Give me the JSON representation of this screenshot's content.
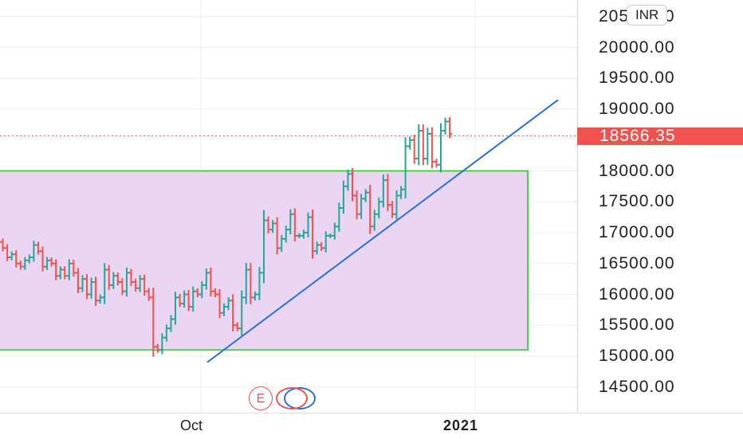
{
  "chart_data": {
    "type": "ohlc",
    "currency": "INR",
    "last_price_label": "18566.35",
    "last_price": 18566.35,
    "y_axis": {
      "ticks": [
        "20500.00",
        "20000.00",
        "19500.00",
        "19000.00",
        "18000.00",
        "17500.00",
        "17000.00",
        "16500.00",
        "16000.00",
        "15500.00",
        "15000.00",
        "14500.00"
      ],
      "tick_values": [
        20500,
        20000,
        19500,
        19000,
        18000,
        17500,
        17000,
        16500,
        16000,
        15500,
        15000,
        14500
      ],
      "range": [
        14100,
        21000
      ]
    },
    "x_axis": {
      "labels": [
        {
          "text": "Oct",
          "bold": false
        },
        {
          "text": "2021",
          "bold": true
        }
      ]
    },
    "grid": true,
    "bars_close": [
      16850,
      16750,
      16600,
      16650,
      16500,
      16450,
      16550,
      16600,
      16800,
      16700,
      16450,
      16550,
      16500,
      16300,
      16400,
      16300,
      16500,
      16350,
      16100,
      16250,
      16000,
      16200,
      15900,
      15950,
      16400,
      16150,
      16300,
      16200,
      16050,
      16350,
      16200,
      16100,
      16250,
      16050,
      15950,
      15150,
      15100,
      15300,
      15450,
      15600,
      15950,
      15850,
      16000,
      15800,
      16050,
      16000,
      16150,
      16350,
      16050,
      16000,
      15700,
      15800,
      15900,
      15500,
      15450,
      15950,
      16400,
      15950,
      16000,
      16350,
      17200,
      17050,
      17150,
      16750,
      16900,
      17050,
      17300,
      16950,
      16950,
      17000,
      17250,
      16700,
      16800,
      16750,
      16950,
      16950,
      17100,
      17400,
      17750,
      17950,
      17600,
      17300,
      17550,
      17650,
      17100,
      17300,
      17500,
      17850,
      17450,
      17300,
      17600,
      17700,
      18400,
      18500,
      18200,
      18650,
      18200,
      18600,
      18150,
      18100,
      18650,
      18800,
      18600
    ],
    "trend_line": {
      "from": {
        "bar": 69,
        "price": 14900
      },
      "to": {
        "bar": 130,
        "price": 19150
      }
    },
    "range_box": {
      "top": 18000,
      "bottom": 15100
    }
  }
}
